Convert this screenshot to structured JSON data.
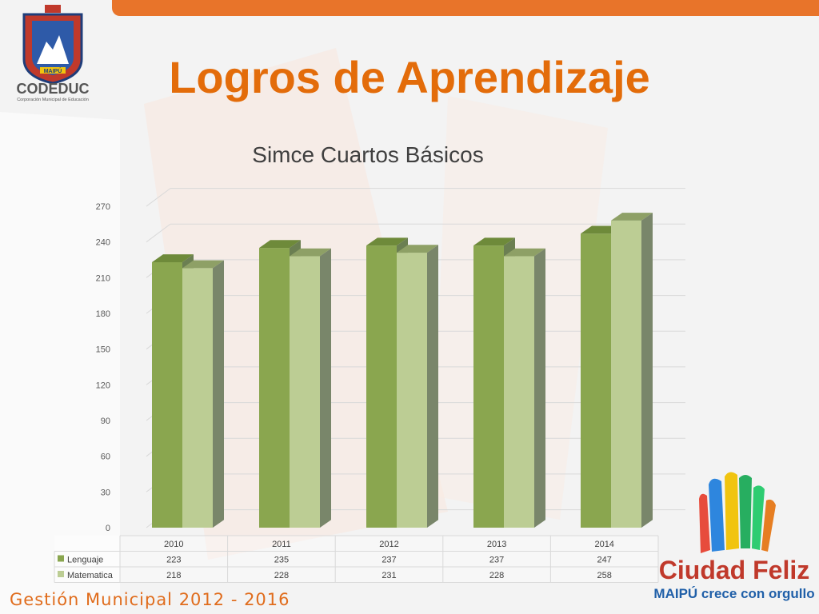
{
  "header": {
    "title": "Logros de Aprendizaje"
  },
  "logos": {
    "codeduc_name": "CODEDUC",
    "codeduc_subtitle": "Corporación Municipal de Educación",
    "codeduc_shield_text": "MAIPÚ",
    "ciudad_name": "Ciudad Feliz",
    "ciudad_tagline": "MAIPÚ crece con orgullo"
  },
  "footer": {
    "text": "Gestión Municipal 2012 - 2016"
  },
  "colors": {
    "accent": "#e36c0a",
    "lenguaje": "#8aa64f",
    "matematica": "#bccd94"
  },
  "chart_data": {
    "type": "bar",
    "title": "Simce Cuartos Básicos",
    "categories": [
      "2010",
      "2011",
      "2012",
      "2013",
      "2014"
    ],
    "series": [
      {
        "name": "Lenguaje",
        "values": [
          223,
          235,
          237,
          237,
          247
        ]
      },
      {
        "name": "Matematica",
        "values": [
          218,
          228,
          231,
          228,
          258
        ]
      }
    ],
    "yticks": [
      0,
      30,
      60,
      90,
      120,
      150,
      180,
      210,
      240,
      270
    ],
    "ylim": [
      0,
      270
    ],
    "grid": true,
    "legend": "data-table",
    "xlabel": "",
    "ylabel": ""
  }
}
